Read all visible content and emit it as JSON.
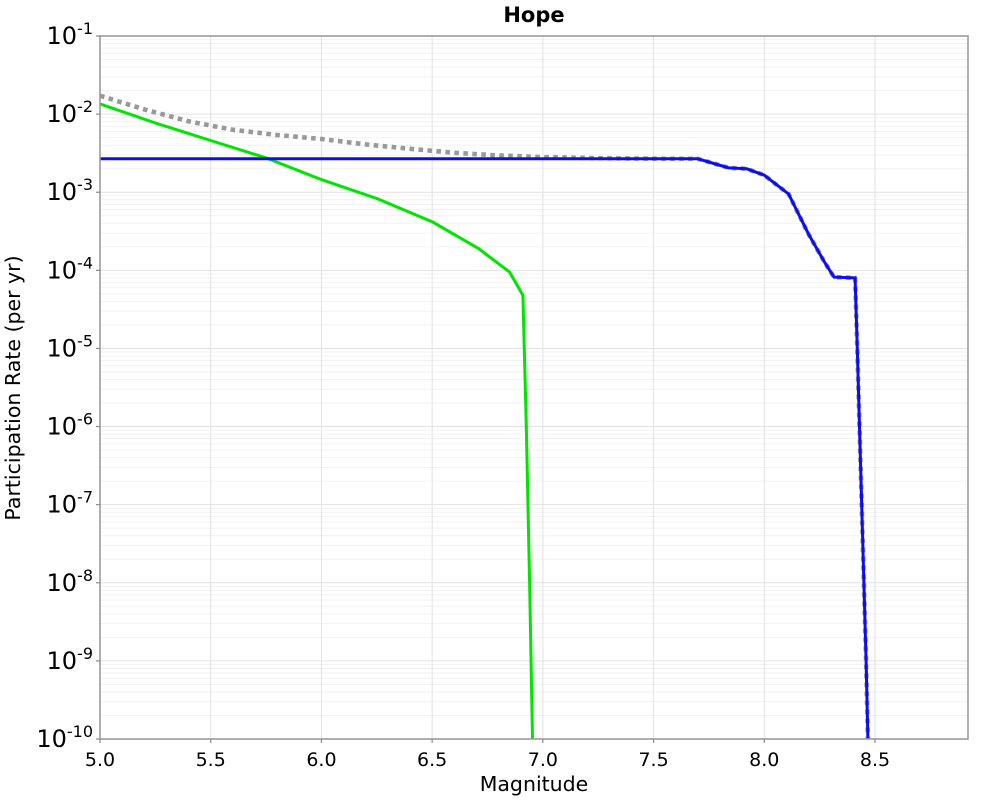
{
  "chart_data": {
    "type": "line",
    "title": "Hope",
    "xlabel": "Magnitude",
    "ylabel": "Participation Rate (per yr)",
    "grid": true,
    "legend": "none",
    "x_axis": {
      "min": 5.0,
      "max": 8.92,
      "ticks": [
        5.0,
        5.5,
        6.0,
        6.5,
        7.0,
        7.5,
        8.0,
        8.5
      ],
      "tick_labels": [
        "5.0",
        "5.5",
        "6.0",
        "6.5",
        "7.0",
        "7.5",
        "8.0",
        "8.5"
      ]
    },
    "y_axis": {
      "scale": "log",
      "min": 1e-10,
      "max": 0.1,
      "tick_base": "10",
      "tick_exponents": [
        "-1",
        "-2",
        "-3",
        "-4",
        "-5",
        "-6",
        "-7",
        "-8",
        "-9",
        "-10"
      ]
    },
    "series": [
      {
        "name": "total-rate-dotted-gray",
        "color": "#999999",
        "style": "dotted",
        "width": 4.6,
        "points": [
          [
            5.0,
            0.0172
          ],
          [
            5.2,
            0.0115
          ],
          [
            5.4,
            0.0081
          ],
          [
            5.6,
            0.0063
          ],
          [
            5.8,
            0.0054
          ],
          [
            6.0,
            0.0048
          ],
          [
            6.2,
            0.0041
          ],
          [
            6.4,
            0.0036
          ],
          [
            6.6,
            0.0032
          ],
          [
            6.8,
            0.00295
          ],
          [
            7.0,
            0.00282
          ],
          [
            7.2,
            0.00274
          ],
          [
            7.4,
            0.0027
          ],
          [
            7.55,
            0.00268
          ],
          [
            7.7,
            0.00268
          ],
          [
            7.78,
            0.0023
          ],
          [
            7.84,
            0.00205
          ],
          [
            7.92,
            0.002
          ],
          [
            8.0,
            0.00165
          ],
          [
            8.11,
            0.00095
          ],
          [
            8.2,
            0.00029
          ],
          [
            8.27,
            0.00013
          ],
          [
            8.315,
            8.2e-05
          ],
          [
            8.41,
            8e-05
          ],
          [
            8.42,
            1e-05
          ],
          [
            8.44,
            1e-07
          ],
          [
            8.46,
            1e-09
          ],
          [
            8.468,
            1e-10
          ]
        ]
      },
      {
        "name": "green-solid-curve",
        "color": "#00e400",
        "style": "solid",
        "width": 3,
        "points": [
          [
            5.0,
            0.0135
          ],
          [
            5.25,
            0.0077
          ],
          [
            5.5,
            0.0046
          ],
          [
            5.75,
            0.00275
          ],
          [
            6.0,
            0.00145
          ],
          [
            6.25,
            0.00083
          ],
          [
            6.5,
            0.00042
          ],
          [
            6.71,
            0.00019
          ],
          [
            6.85,
            9.5e-05
          ],
          [
            6.91,
            4.8e-05
          ],
          [
            6.925,
            1e-06
          ],
          [
            6.94,
            1e-08
          ],
          [
            6.953,
            1e-10
          ]
        ]
      },
      {
        "name": "blue-solid-curve",
        "color": "#0d0dee",
        "style": "solid",
        "width": 3,
        "points": [
          [
            5.0,
            0.00268
          ],
          [
            7.7,
            0.00268
          ],
          [
            7.78,
            0.0023
          ],
          [
            7.84,
            0.00205
          ],
          [
            7.92,
            0.002
          ],
          [
            8.0,
            0.00165
          ],
          [
            8.11,
            0.00095
          ],
          [
            8.2,
            0.00029
          ],
          [
            8.27,
            0.00013
          ],
          [
            8.315,
            8.2e-05
          ],
          [
            8.41,
            8e-05
          ],
          [
            8.42,
            1e-05
          ],
          [
            8.44,
            1e-07
          ],
          [
            8.46,
            1e-09
          ],
          [
            8.468,
            1e-10
          ]
        ]
      }
    ]
  }
}
